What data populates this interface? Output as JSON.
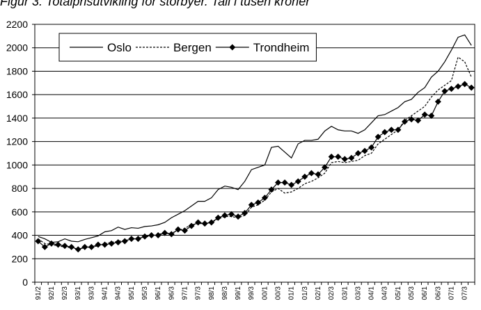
{
  "chart_data": {
    "type": "line",
    "title": "Figur 3. Totalprisutvikling for storbyer. Tall i tusen kroner",
    "categories": [
      "91/2",
      null,
      "92/1",
      null,
      "92/3",
      null,
      "93/1",
      null,
      "93/3",
      null,
      "94/1",
      null,
      "94/3",
      null,
      "95/1",
      null,
      "95/3",
      null,
      "96/1",
      null,
      "96/3",
      null,
      "97/1",
      null,
      "97/3",
      null,
      "98/1",
      null,
      "98/3",
      null,
      "99/1",
      null,
      "99/3",
      null,
      "00/1",
      null,
      "00/3",
      null,
      "01/1",
      null,
      "01/3",
      null,
      "02/1",
      null,
      "02/3",
      null,
      "03/1",
      null,
      "03/3",
      null,
      "04/1",
      null,
      "04/3",
      null,
      "05/1",
      null,
      "05/3",
      null,
      "06/1",
      null,
      "06/3",
      null,
      "07/1",
      null,
      "07/3",
      null
    ],
    "series": [
      {
        "name": "Oslo",
        "color": "#000000",
        "line_style": "solid",
        "marker": "none",
        "values": [
          390,
          370,
          340,
          345,
          370,
          350,
          345,
          365,
          380,
          395,
          430,
          440,
          470,
          450,
          465,
          460,
          475,
          480,
          490,
          510,
          550,
          580,
          610,
          650,
          690,
          690,
          720,
          790,
          820,
          810,
          790,
          860,
          960,
          980,
          1000,
          1150,
          1160,
          1110,
          1060,
          1180,
          1210,
          1210,
          1220,
          1290,
          1330,
          1300,
          1290,
          1290,
          1270,
          1300,
          1360,
          1420,
          1430,
          1460,
          1490,
          1540,
          1560,
          1620,
          1660,
          1750,
          1800,
          1880,
          1980,
          2090,
          2110,
          2020
        ]
      },
      {
        "name": "Bergen",
        "color": "#000000",
        "line_style": "dotted",
        "marker": "none",
        "values": [
          370,
          330,
          320,
          310,
          300,
          295,
          280,
          295,
          300,
          310,
          330,
          340,
          350,
          355,
          370,
          375,
          385,
          395,
          410,
          415,
          420,
          440,
          460,
          490,
          500,
          500,
          510,
          540,
          560,
          560,
          550,
          570,
          640,
          660,
          700,
          770,
          800,
          760,
          770,
          800,
          840,
          860,
          890,
          930,
          1020,
          1030,
          1020,
          1030,
          1040,
          1080,
          1100,
          1180,
          1220,
          1260,
          1300,
          1380,
          1420,
          1460,
          1500,
          1580,
          1640,
          1680,
          1720,
          1920,
          1880,
          1750
        ]
      },
      {
        "name": "Trondheim",
        "color": "#000000",
        "line_style": "solid",
        "marker": "diamond",
        "values": [
          350,
          300,
          330,
          320,
          310,
          300,
          280,
          300,
          300,
          320,
          320,
          330,
          340,
          350,
          370,
          370,
          390,
          400,
          400,
          420,
          410,
          450,
          440,
          480,
          510,
          500,
          510,
          550,
          570,
          580,
          560,
          590,
          660,
          680,
          720,
          790,
          850,
          850,
          830,
          860,
          900,
          930,
          920,
          980,
          1070,
          1070,
          1050,
          1060,
          1100,
          1120,
          1150,
          1240,
          1280,
          1300,
          1300,
          1370,
          1390,
          1380,
          1430,
          1420,
          1540,
          1630,
          1650,
          1670,
          1690,
          1660
        ]
      }
    ],
    "ylim": [
      0,
      2200
    ],
    "yticks": [
      0,
      200,
      400,
      600,
      800,
      1000,
      1200,
      1400,
      1600,
      1800,
      2000,
      2200
    ],
    "grid": true,
    "legend": "top-left"
  }
}
